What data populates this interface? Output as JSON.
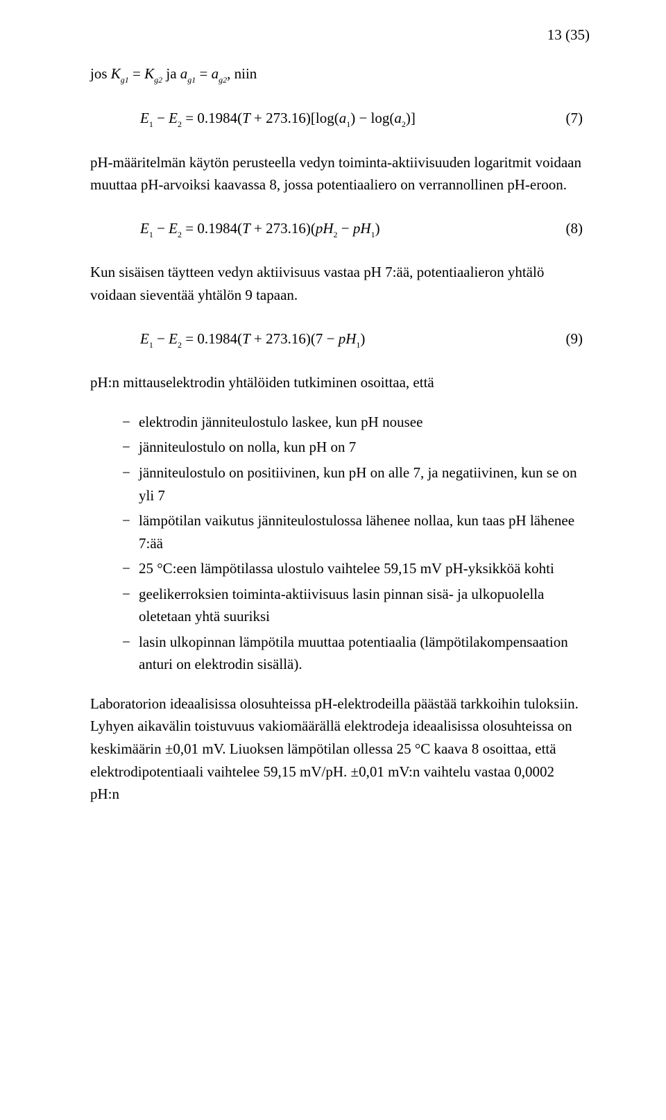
{
  "page_number_label": "13 (35)",
  "intro_line_pre": "jos ",
  "intro_line_post": ", niin",
  "eq7_num": "(7)",
  "eq8_num": "(8)",
  "eq9_num": "(9)",
  "text_after_eq7": "pH-määritelmän käytön perusteella vedyn toiminta-aktiivisuuden logaritmit voidaan muuttaa pH-arvoiksi kaavassa 8, jossa potentiaaliero on verrannollinen pH-eroon.",
  "text_after_eq8": "Kun sisäisen täytteen vedyn aktiivisuus vastaa pH 7:ää, potentiaalieron yhtälö voidaan sieventää yhtälön 9 tapaan.",
  "text_after_eq9": "pH:n mittauselektrodin yhtälöiden tutkiminen osoittaa, että",
  "bullets": [
    "elektrodin jänniteulostulo laskee, kun pH nousee",
    "jänniteulostulo on nolla, kun pH on 7",
    "jänniteulostulo on positiivinen, kun pH on alle 7, ja negatiivinen, kun se on yli 7",
    "lämpötilan vaikutus jänniteulostulossa lähenee nollaa, kun taas pH lähenee 7:ää",
    "25 °C:een lämpötilassa ulostulo vaihtelee 59,15 mV pH-yksikköä kohti",
    "geelikerroksien toiminta-aktiivisuus lasin pinnan sisä- ja ulkopuolella oletetaan yhtä suuriksi",
    "lasin ulkopinnan lämpötila muuttaa potentiaalia (lämpötilakompensaation anturi on elektrodin sisällä)."
  ],
  "closing_paragraph": "Laboratorion ideaalisissa olosuhteissa pH-elektrodeilla päästää tarkkoihin tuloksiin. Lyhyen aikavälin toistuvuus vakiomäärällä elektrodeja ideaalisissa olosuhteissa on keskimäärin ±0,01 mV. Liuoksen lämpötilan ollessa 25 °C kaava 8 osoittaa, että elektrodipotentiaali vaihtelee 59,15 mV/pH. ±0,01 mV:n vaihtelu vastaa 0,0002 pH:n",
  "eq_const_prefix": "0.1984(",
  "eq_T": "T",
  "eq_plus_const": " + 273.16)",
  "eq7_log_open": "[log(",
  "eq7_log_mid": ") − log(",
  "eq7_log_close": ")]",
  "eq8_open": "(",
  "eq8_minus": " − ",
  "eq8_close": ")",
  "eq9_open": "(7 − ",
  "eq9_close": ")",
  "E": "E",
  "a": "a",
  "K": "K",
  "pH": "pH",
  "s1": "1",
  "s2": "2",
  "g1": "g1",
  "g2": "g2",
  "equals": " = ",
  "ja": " ja ",
  "minus": " − "
}
